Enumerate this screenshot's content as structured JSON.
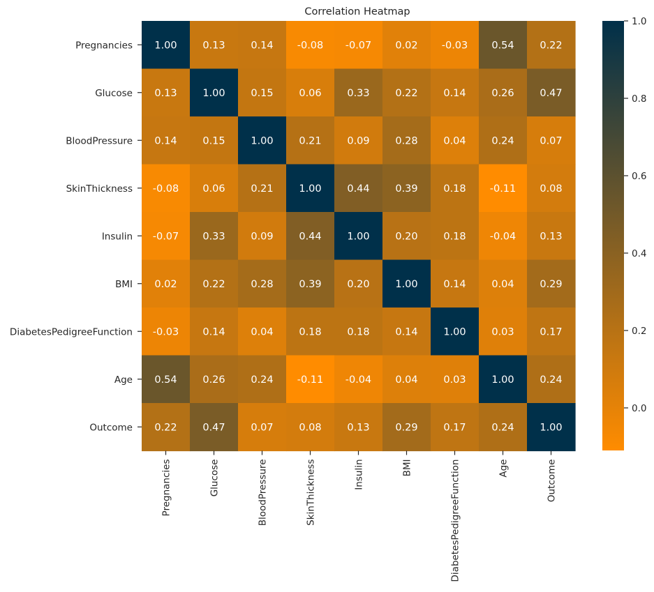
{
  "chart_data": {
    "type": "heatmap",
    "title": "Correlation Heatmap",
    "xlabel": "",
    "ylabel": "",
    "labels": [
      "Pregnancies",
      "Glucose",
      "BloodPressure",
      "SkinThickness",
      "Insulin",
      "BMI",
      "DiabetesPedigreeFunction",
      "Age",
      "Outcome"
    ],
    "matrix": [
      [
        "1.00",
        "0.13",
        "0.14",
        "-0.08",
        "-0.07",
        "0.02",
        "-0.03",
        "0.54",
        "0.22"
      ],
      [
        "0.13",
        "1.00",
        "0.15",
        "0.06",
        "0.33",
        "0.22",
        "0.14",
        "0.26",
        "0.47"
      ],
      [
        "0.14",
        "0.15",
        "1.00",
        "0.21",
        "0.09",
        "0.28",
        "0.04",
        "0.24",
        "0.07"
      ],
      [
        "-0.08",
        "0.06",
        "0.21",
        "1.00",
        "0.44",
        "0.39",
        "0.18",
        "-0.11",
        "0.08"
      ],
      [
        "-0.07",
        "0.33",
        "0.09",
        "0.44",
        "1.00",
        "0.20",
        "0.18",
        "-0.04",
        "0.13"
      ],
      [
        "0.02",
        "0.22",
        "0.28",
        "0.39",
        "0.20",
        "1.00",
        "0.14",
        "0.04",
        "0.29"
      ],
      [
        "-0.03",
        "0.14",
        "0.04",
        "0.18",
        "0.18",
        "0.14",
        "1.00",
        "0.03",
        "0.17"
      ],
      [
        "0.54",
        "0.26",
        "0.24",
        "-0.11",
        "-0.04",
        "0.04",
        "0.03",
        "1.00",
        "0.24"
      ],
      [
        "0.22",
        "0.47",
        "0.07",
        "0.08",
        "0.13",
        "0.29",
        "0.17",
        "0.24",
        "1.00"
      ]
    ],
    "vmin": -0.11,
    "vmax": 1.0,
    "colormap": [
      "#ff8c00",
      "#00304a"
    ],
    "colorbar_ticks": [
      "0.0",
      "0.2",
      "0.4",
      "0.6",
      "0.8",
      "1.0"
    ],
    "grid": false,
    "legend": "colorbar-right"
  }
}
